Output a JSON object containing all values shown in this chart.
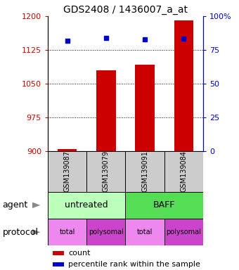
{
  "title": "GDS2408 / 1436007_a_at",
  "samples": [
    "GSM139087",
    "GSM139079",
    "GSM139091",
    "GSM139084"
  ],
  "bar_values": [
    905,
    1080,
    1093,
    1190
  ],
  "percentile_values": [
    82,
    84,
    83,
    83.5
  ],
  "bar_color": "#cc0000",
  "dot_color": "#0000cc",
  "ylim_left": [
    900,
    1200
  ],
  "ylim_right": [
    0,
    100
  ],
  "yticks_left": [
    900,
    975,
    1050,
    1125,
    1200
  ],
  "ytick_labels_left": [
    "900",
    "975",
    "1050",
    "1125",
    "1200"
  ],
  "yticks_right": [
    0,
    25,
    50,
    75,
    100
  ],
  "ytick_labels_right": [
    "0",
    "25",
    "50",
    "75",
    "100%"
  ],
  "agent_untreated_color": "#bbffbb",
  "agent_baff_color": "#55dd55",
  "protocol_total_color": "#ee88ee",
  "protocol_poly_color": "#cc44cc",
  "protocol_labels": [
    "total",
    "polysomal",
    "total",
    "polysomal"
  ],
  "legend_count_color": "#cc0000",
  "legend_pct_color": "#0000cc",
  "left_color": "#cc0000",
  "right_color": "#0000cc",
  "arrow_color": "#888888"
}
